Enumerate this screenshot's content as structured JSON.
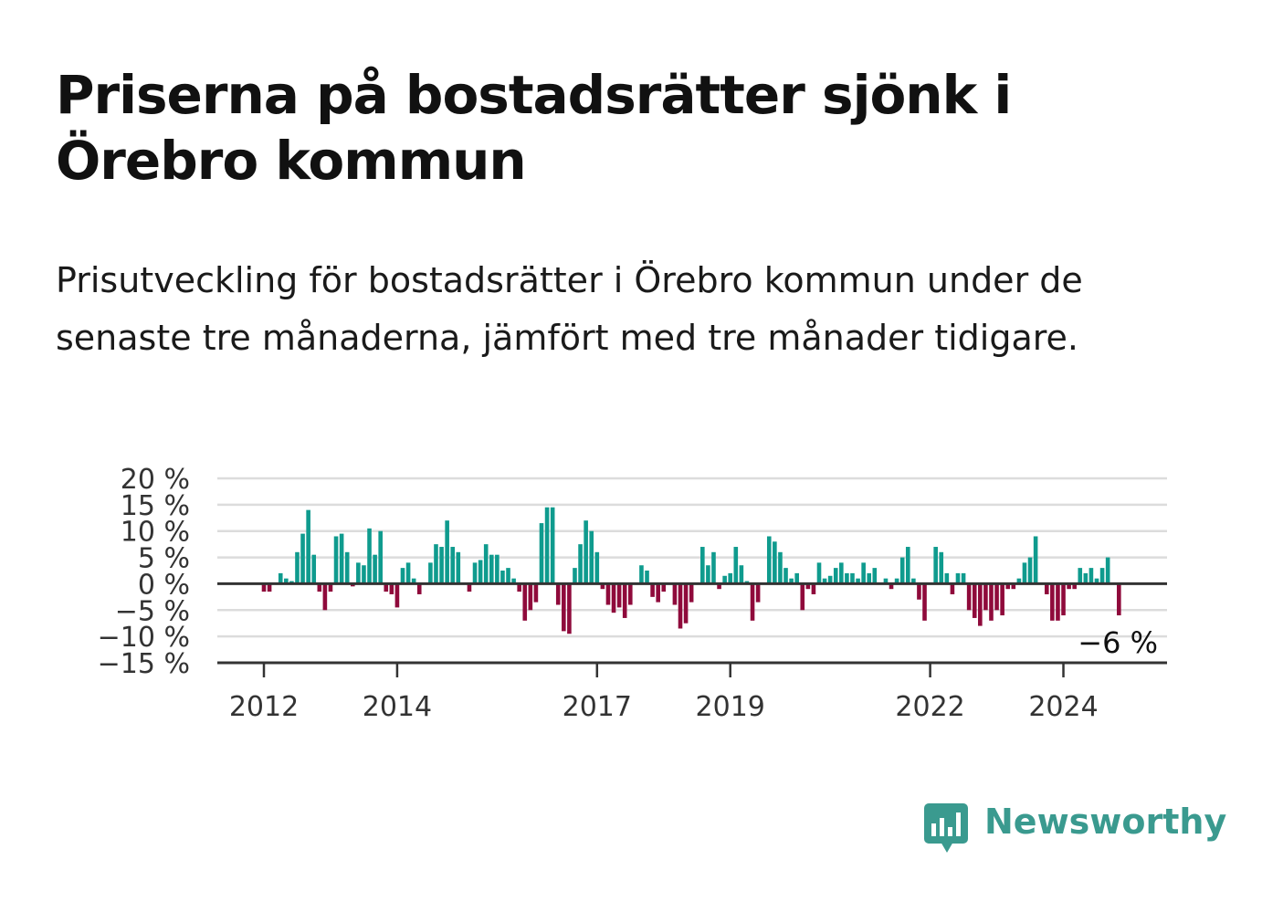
{
  "title": "Priserna på bostadsrätter sjönk i Örebro kommun",
  "subtitle": "Prisutveckling för bostadsrätter i Örebro kommun under de senaste tre månaderna, jämfört med tre månader tidigare.",
  "brand": {
    "name": "Newsworthy",
    "color": "#3a9a8f",
    "icon": "newsworthy-logo-icon"
  },
  "colors": {
    "positive": "#0f9b8e",
    "negative": "#8f0a3b",
    "grid": "#dcdcdc",
    "axis": "#333333"
  },
  "chart_data": {
    "type": "bar",
    "x_unit": "month",
    "x_start": "2012-01",
    "x_end": "2024-12",
    "xticks": [
      {
        "label": "2012",
        "date": "2012-01"
      },
      {
        "label": "2014",
        "date": "2014-01"
      },
      {
        "label": "2017",
        "date": "2017-01"
      },
      {
        "label": "2019",
        "date": "2019-01"
      },
      {
        "label": "2022",
        "date": "2022-01"
      },
      {
        "label": "2024",
        "date": "2024-01"
      }
    ],
    "yticks": [
      {
        "value": 20,
        "label": "20 %"
      },
      {
        "value": 15,
        "label": "15 %"
      },
      {
        "value": 10,
        "label": "10 %"
      },
      {
        "value": 5,
        "label": "5 %"
      },
      {
        "value": 0,
        "label": "0 %"
      },
      {
        "value": -5,
        "label": "−5 %"
      },
      {
        "value": -10,
        "label": "−10 %"
      },
      {
        "value": -15,
        "label": "−15 %"
      }
    ],
    "ylim": [
      -15,
      20
    ],
    "grid": true,
    "last_value_label": "−6 %",
    "series": [
      {
        "points": [
          [
            "2012-01",
            -1.5
          ],
          [
            "2012-02",
            -1.5
          ],
          [
            "2012-04",
            2
          ],
          [
            "2012-05",
            1
          ],
          [
            "2012-06",
            0.5
          ],
          [
            "2012-07",
            6
          ],
          [
            "2012-08",
            9.5
          ],
          [
            "2012-09",
            14
          ],
          [
            "2012-10",
            5.5
          ],
          [
            "2012-11",
            -1.5
          ],
          [
            "2012-12",
            -5
          ],
          [
            "2013-01",
            -1.5
          ],
          [
            "2013-02",
            9
          ],
          [
            "2013-03",
            9.5
          ],
          [
            "2013-04",
            6
          ],
          [
            "2013-05",
            -0.5
          ],
          [
            "2013-06",
            4
          ],
          [
            "2013-07",
            3.5
          ],
          [
            "2013-08",
            10.5
          ],
          [
            "2013-09",
            5.5
          ],
          [
            "2013-10",
            10
          ],
          [
            "2013-11",
            -1.5
          ],
          [
            "2013-12",
            -2
          ],
          [
            "2014-01",
            -4.5
          ],
          [
            "2014-02",
            3
          ],
          [
            "2014-03",
            4
          ],
          [
            "2014-04",
            1
          ],
          [
            "2014-05",
            -2
          ],
          [
            "2014-07",
            4
          ],
          [
            "2014-08",
            7.5
          ],
          [
            "2014-09",
            7
          ],
          [
            "2014-10",
            12
          ],
          [
            "2014-11",
            7
          ],
          [
            "2014-12",
            6
          ],
          [
            "2015-02",
            -1.5
          ],
          [
            "2015-03",
            4
          ],
          [
            "2015-04",
            4.5
          ],
          [
            "2015-05",
            7.5
          ],
          [
            "2015-06",
            5.5
          ],
          [
            "2015-07",
            5.5
          ],
          [
            "2015-08",
            2.5
          ],
          [
            "2015-09",
            3
          ],
          [
            "2015-10",
            1
          ],
          [
            "2015-11",
            -1.5
          ],
          [
            "2015-12",
            -7
          ],
          [
            "2016-01",
            -5
          ],
          [
            "2016-02",
            -3.5
          ],
          [
            "2016-03",
            11.5
          ],
          [
            "2016-04",
            14.5
          ],
          [
            "2016-05",
            14.5
          ],
          [
            "2016-06",
            -4
          ],
          [
            "2016-07",
            -9
          ],
          [
            "2016-08",
            -9.5
          ],
          [
            "2016-09",
            3
          ],
          [
            "2016-10",
            7.5
          ],
          [
            "2016-11",
            12
          ],
          [
            "2016-12",
            10
          ],
          [
            "2017-01",
            6
          ],
          [
            "2017-02",
            -1
          ],
          [
            "2017-03",
            -4
          ],
          [
            "2017-04",
            -5.5
          ],
          [
            "2017-05",
            -4.5
          ],
          [
            "2017-06",
            -6.5
          ],
          [
            "2017-07",
            -4
          ],
          [
            "2017-09",
            3.5
          ],
          [
            "2017-10",
            2.5
          ],
          [
            "2017-11",
            -2.5
          ],
          [
            "2017-12",
            -3.5
          ],
          [
            "2018-01",
            -1.5
          ],
          [
            "2018-03",
            -4
          ],
          [
            "2018-04",
            -8.5
          ],
          [
            "2018-05",
            -7.5
          ],
          [
            "2018-06",
            -3.5
          ],
          [
            "2018-08",
            7
          ],
          [
            "2018-09",
            3.5
          ],
          [
            "2018-10",
            6
          ],
          [
            "2018-11",
            -1
          ],
          [
            "2018-12",
            1.5
          ],
          [
            "2019-01",
            2
          ],
          [
            "2019-02",
            7
          ],
          [
            "2019-03",
            3.5
          ],
          [
            "2019-04",
            0.5
          ],
          [
            "2019-05",
            -7
          ],
          [
            "2019-06",
            -3.5
          ],
          [
            "2019-08",
            9
          ],
          [
            "2019-09",
            8
          ],
          [
            "2019-10",
            6
          ],
          [
            "2019-11",
            3
          ],
          [
            "2019-12",
            1
          ],
          [
            "2020-01",
            2
          ],
          [
            "2020-02",
            -5
          ],
          [
            "2020-03",
            -1
          ],
          [
            "2020-04",
            -2
          ],
          [
            "2020-05",
            4
          ],
          [
            "2020-06",
            1
          ],
          [
            "2020-07",
            1.5
          ],
          [
            "2020-08",
            3
          ],
          [
            "2020-09",
            4
          ],
          [
            "2020-10",
            2
          ],
          [
            "2020-11",
            2
          ],
          [
            "2020-12",
            1
          ],
          [
            "2021-01",
            4
          ],
          [
            "2021-02",
            2
          ],
          [
            "2021-03",
            3
          ],
          [
            "2021-05",
            1
          ],
          [
            "2021-06",
            -1
          ],
          [
            "2021-07",
            1
          ],
          [
            "2021-08",
            5
          ],
          [
            "2021-09",
            7
          ],
          [
            "2021-10",
            1
          ],
          [
            "2021-11",
            -3
          ],
          [
            "2021-12",
            -7
          ],
          [
            "2022-02",
            7
          ],
          [
            "2022-03",
            6
          ],
          [
            "2022-04",
            2
          ],
          [
            "2022-05",
            -2
          ],
          [
            "2022-06",
            2
          ],
          [
            "2022-07",
            2
          ],
          [
            "2022-08",
            -5
          ],
          [
            "2022-09",
            -6.5
          ],
          [
            "2022-10",
            -8
          ],
          [
            "2022-11",
            -5
          ],
          [
            "2022-12",
            -7
          ],
          [
            "2023-01",
            -5
          ],
          [
            "2023-02",
            -6
          ],
          [
            "2023-03",
            -1
          ],
          [
            "2023-04",
            -1
          ],
          [
            "2023-05",
            1
          ],
          [
            "2023-06",
            4
          ],
          [
            "2023-07",
            5
          ],
          [
            "2023-08",
            9
          ],
          [
            "2023-10",
            -2
          ],
          [
            "2023-11",
            -7
          ],
          [
            "2023-12",
            -7
          ],
          [
            "2024-01",
            -6
          ],
          [
            "2024-02",
            -1
          ],
          [
            "2024-03",
            -1
          ],
          [
            "2024-04",
            3
          ],
          [
            "2024-05",
            2
          ],
          [
            "2024-06",
            3
          ],
          [
            "2024-07",
            1
          ],
          [
            "2024-08",
            3
          ],
          [
            "2024-09",
            5
          ],
          [
            "2024-11",
            -6
          ]
        ]
      }
    ]
  }
}
